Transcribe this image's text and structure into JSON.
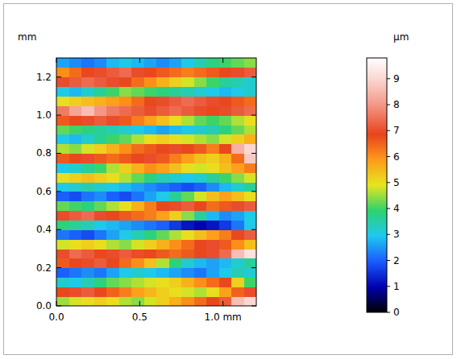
{
  "chart_data": {
    "type": "heatmap",
    "y_label": "mm",
    "x": [
      0.0375,
      0.1125,
      0.1875,
      0.2625,
      0.3375,
      0.4125,
      0.4875,
      0.5625,
      0.6375,
      0.7125,
      0.7875,
      0.8625,
      0.9375,
      1.0125,
      1.0875,
      1.1625
    ],
    "y": [
      0.025,
      0.075,
      0.125,
      0.175,
      0.225,
      0.275,
      0.325,
      0.375,
      0.425,
      0.475,
      0.525,
      0.575,
      0.625,
      0.675,
      0.725,
      0.775,
      0.825,
      0.875,
      0.925,
      0.975,
      1.025,
      1.075,
      1.125,
      1.175,
      1.225,
      1.275
    ],
    "cells": [
      [
        4.5,
        4.8,
        5.0,
        5.2,
        5.0,
        4.6,
        4.4,
        4.8,
        5.2,
        5.6,
        6.0,
        6.4,
        6.8,
        7.2,
        8.6,
        9.0
      ],
      [
        6.8,
        7.0,
        7.2,
        6.8,
        6.5,
        6.2,
        5.8,
        5.5,
        5.2,
        5.0,
        4.8,
        4.6,
        5.0,
        5.8,
        6.5,
        7.0
      ],
      [
        3.2,
        3.0,
        3.4,
        3.8,
        4.2,
        4.4,
        4.6,
        4.8,
        5.0,
        5.2,
        5.6,
        6.0,
        6.4,
        6.8,
        5.2,
        4.0
      ],
      [
        2.0,
        2.2,
        2.4,
        2.2,
        2.6,
        3.0,
        3.2,
        3.0,
        2.8,
        2.6,
        2.4,
        2.2,
        2.6,
        3.0,
        3.4,
        3.2
      ],
      [
        6.6,
        6.8,
        7.0,
        7.2,
        6.8,
        6.4,
        6.0,
        5.4,
        4.6,
        3.8,
        3.2,
        2.8,
        2.6,
        2.8,
        3.2,
        3.6
      ],
      [
        7.0,
        7.4,
        7.2,
        6.8,
        7.0,
        7.2,
        7.0,
        6.8,
        6.6,
        6.4,
        6.6,
        6.8,
        7.0,
        7.4,
        8.6,
        9.2
      ],
      [
        4.8,
        5.0,
        5.2,
        5.0,
        4.6,
        4.4,
        4.8,
        5.2,
        5.6,
        6.0,
        6.4,
        6.8,
        7.0,
        6.6,
        6.0,
        5.4
      ],
      [
        2.2,
        2.0,
        1.8,
        2.2,
        2.6,
        3.0,
        3.4,
        3.8,
        4.2,
        4.6,
        5.0,
        5.4,
        5.8,
        6.2,
        6.8,
        7.2
      ],
      [
        3.8,
        3.6,
        3.4,
        3.0,
        2.8,
        2.6,
        2.4,
        2.2,
        2.0,
        1.6,
        1.2,
        1.0,
        1.2,
        1.6,
        2.2,
        3.0
      ],
      [
        7.0,
        7.2,
        7.4,
        7.0,
        6.8,
        6.6,
        6.4,
        6.2,
        5.8,
        5.2,
        4.4,
        3.6,
        2.8,
        2.4,
        2.6,
        3.0
      ],
      [
        4.2,
        4.0,
        3.8,
        4.2,
        4.6,
        5.0,
        5.6,
        6.2,
        6.8,
        7.0,
        7.2,
        6.8,
        6.4,
        6.6,
        7.0,
        7.2
      ],
      [
        2.0,
        1.8,
        2.2,
        2.4,
        2.0,
        1.8,
        2.2,
        2.6,
        3.0,
        3.6,
        4.2,
        4.8,
        5.4,
        5.8,
        5.4,
        5.0
      ],
      [
        3.0,
        3.2,
        3.4,
        3.2,
        3.0,
        2.8,
        2.6,
        2.4,
        2.2,
        2.0,
        1.8,
        2.0,
        2.4,
        2.8,
        3.2,
        3.6
      ],
      [
        5.0,
        5.2,
        5.4,
        5.2,
        5.0,
        4.6,
        4.2,
        3.8,
        3.4,
        3.2,
        3.0,
        3.2,
        3.6,
        4.0,
        4.4,
        4.8
      ],
      [
        3.0,
        3.2,
        3.6,
        4.0,
        4.6,
        5.2,
        5.6,
        6.0,
        5.8,
        5.4,
        5.0,
        4.8,
        5.0,
        5.4,
        5.8,
        6.2
      ],
      [
        6.6,
        6.8,
        7.0,
        6.6,
        6.4,
        6.6,
        6.8,
        7.0,
        6.6,
        6.2,
        5.8,
        5.4,
        5.2,
        5.6,
        6.4,
        8.8
      ],
      [
        4.6,
        4.4,
        4.8,
        5.2,
        5.6,
        6.0,
        6.4,
        6.6,
        6.8,
        7.0,
        6.8,
        6.6,
        6.2,
        6.8,
        8.4,
        9.0
      ],
      [
        3.0,
        2.8,
        3.2,
        3.6,
        4.0,
        4.2,
        4.6,
        5.0,
        5.2,
        5.0,
        4.8,
        4.6,
        4.4,
        4.8,
        5.2,
        5.6
      ],
      [
        4.2,
        4.0,
        3.8,
        3.6,
        3.4,
        3.2,
        3.0,
        2.8,
        2.6,
        2.8,
        3.0,
        3.2,
        3.4,
        3.8,
        4.2,
        4.6
      ],
      [
        6.6,
        6.8,
        7.0,
        7.2,
        7.0,
        6.6,
        6.2,
        5.8,
        5.4,
        5.0,
        4.6,
        4.2,
        4.0,
        4.2,
        4.6,
        5.0
      ],
      [
        7.6,
        8.2,
        8.6,
        8.0,
        7.6,
        7.4,
        7.2,
        7.0,
        7.2,
        7.4,
        7.2,
        7.0,
        6.8,
        7.0,
        7.2,
        7.4
      ],
      [
        5.0,
        5.2,
        5.4,
        5.6,
        5.8,
        6.0,
        6.4,
        6.8,
        7.0,
        7.2,
        7.4,
        7.2,
        7.0,
        6.8,
        6.6,
        6.4
      ],
      [
        3.0,
        2.8,
        3.2,
        3.6,
        4.0,
        4.4,
        4.2,
        4.0,
        3.8,
        3.6,
        3.4,
        3.2,
        3.0,
        2.8,
        3.0,
        3.2
      ],
      [
        7.0,
        7.2,
        7.4,
        7.2,
        7.0,
        6.8,
        6.4,
        6.0,
        5.6,
        5.2,
        4.8,
        4.4,
        4.0,
        3.6,
        3.4,
        3.2
      ],
      [
        6.0,
        6.4,
        6.8,
        7.0,
        7.2,
        7.4,
        7.0,
        6.8,
        6.6,
        6.4,
        6.2,
        6.4,
        6.6,
        6.8,
        7.0,
        7.2
      ],
      [
        2.6,
        2.4,
        2.2,
        2.4,
        2.8,
        3.0,
        2.8,
        2.6,
        2.4,
        2.6,
        3.0,
        3.4,
        3.8,
        4.0,
        4.2,
        4.4
      ]
    ],
    "xlim": [
      0,
      1.2
    ],
    "ylim": [
      0,
      1.3
    ],
    "xticks": [
      {
        "value": 0,
        "label": "0.0"
      },
      0.5,
      {
        "value": 1,
        "label": "1.0 mm"
      }
    ],
    "yticks": [
      {
        "value": 0,
        "label": "0.0"
      },
      0.2,
      0.4,
      0.6,
      0.8,
      {
        "value": 1,
        "label": "1.0"
      },
      1.2
    ],
    "colorbar": {
      "label": "µm",
      "range": [
        0,
        9.8
      ],
      "ticks": [
        0,
        1,
        2,
        3,
        4,
        5,
        6,
        7,
        8,
        9
      ]
    }
  }
}
